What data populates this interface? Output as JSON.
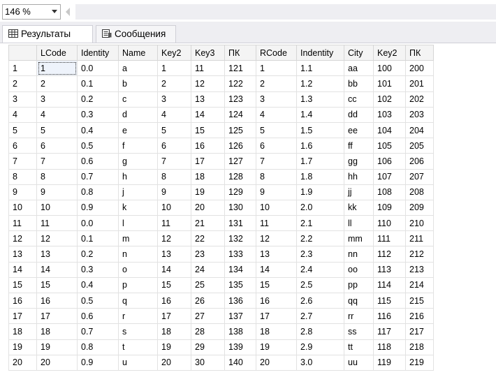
{
  "toolbar": {
    "zoom_value": "146 %"
  },
  "tabs": [
    {
      "label": "Результаты",
      "icon": "grid-icon",
      "active": true
    },
    {
      "label": "Сообщения",
      "icon": "messages-icon",
      "active": false
    }
  ],
  "grid": {
    "columns": [
      "LCode",
      "Identity",
      "Name",
      "Key2",
      "Key3",
      "ПК",
      "RCode",
      "Indentity",
      "City",
      "Key2",
      "ПК"
    ],
    "rows": [
      [
        "1",
        "1",
        "0.0",
        "a",
        "1",
        "11",
        "121",
        "1",
        "1.1",
        "aa",
        "100",
        "200"
      ],
      [
        "2",
        "2",
        "0.1",
        "b",
        "2",
        "12",
        "122",
        "2",
        "1.2",
        "bb",
        "101",
        "201"
      ],
      [
        "3",
        "3",
        "0.2",
        "c",
        "3",
        "13",
        "123",
        "3",
        "1.3",
        "cc",
        "102",
        "202"
      ],
      [
        "4",
        "4",
        "0.3",
        "d",
        "4",
        "14",
        "124",
        "4",
        "1.4",
        "dd",
        "103",
        "203"
      ],
      [
        "5",
        "5",
        "0.4",
        "e",
        "5",
        "15",
        "125",
        "5",
        "1.5",
        "ee",
        "104",
        "204"
      ],
      [
        "6",
        "6",
        "0.5",
        "f",
        "6",
        "16",
        "126",
        "6",
        "1.6",
        "ff",
        "105",
        "205"
      ],
      [
        "7",
        "7",
        "0.6",
        "g",
        "7",
        "17",
        "127",
        "7",
        "1.7",
        "gg",
        "106",
        "206"
      ],
      [
        "8",
        "8",
        "0.7",
        "h",
        "8",
        "18",
        "128",
        "8",
        "1.8",
        "hh",
        "107",
        "207"
      ],
      [
        "9",
        "9",
        "0.8",
        "j",
        "9",
        "19",
        "129",
        "9",
        "1.9",
        "jj",
        "108",
        "208"
      ],
      [
        "10",
        "10",
        "0.9",
        "k",
        "10",
        "20",
        "130",
        "10",
        "2.0",
        "kk",
        "109",
        "209"
      ],
      [
        "11",
        "11",
        "0.0",
        "l",
        "11",
        "21",
        "131",
        "11",
        "2.1",
        "ll",
        "110",
        "210"
      ],
      [
        "12",
        "12",
        "0.1",
        "m",
        "12",
        "22",
        "132",
        "12",
        "2.2",
        "mm",
        "111",
        "211"
      ],
      [
        "13",
        "13",
        "0.2",
        "n",
        "13",
        "23",
        "133",
        "13",
        "2.3",
        "nn",
        "112",
        "212"
      ],
      [
        "14",
        "14",
        "0.3",
        "o",
        "14",
        "24",
        "134",
        "14",
        "2.4",
        "oo",
        "113",
        "213"
      ],
      [
        "15",
        "15",
        "0.4",
        "p",
        "15",
        "25",
        "135",
        "15",
        "2.5",
        "pp",
        "114",
        "214"
      ],
      [
        "16",
        "16",
        "0.5",
        "q",
        "16",
        "26",
        "136",
        "16",
        "2.6",
        "qq",
        "115",
        "215"
      ],
      [
        "17",
        "17",
        "0.6",
        "r",
        "17",
        "27",
        "137",
        "17",
        "2.7",
        "rr",
        "116",
        "216"
      ],
      [
        "18",
        "18",
        "0.7",
        "s",
        "18",
        "28",
        "138",
        "18",
        "2.8",
        "ss",
        "117",
        "217"
      ],
      [
        "19",
        "19",
        "0.8",
        "t",
        "19",
        "29",
        "139",
        "19",
        "2.9",
        "tt",
        "118",
        "218"
      ],
      [
        "20",
        "20",
        "0.9",
        "u",
        "20",
        "30",
        "140",
        "20",
        "3.0",
        "uu",
        "119",
        "219"
      ]
    ]
  }
}
